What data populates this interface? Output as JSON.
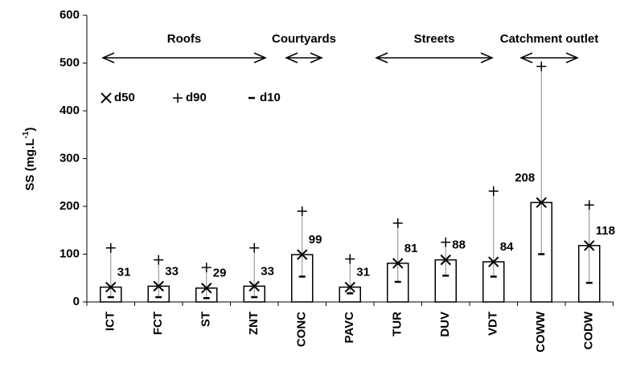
{
  "chart_data": {
    "type": "bar",
    "y_label": {
      "text": "SS (mg.L",
      "sup": "-1",
      "end": ")"
    },
    "categories": [
      "ICT",
      "FCT",
      "ST",
      "ZNT",
      "CONC",
      "PAVC",
      "TUR",
      "DUV",
      "VDT",
      "COWW",
      "CODW"
    ],
    "series": [
      {
        "name": "d50",
        "values": [
          31,
          33,
          29,
          33,
          99,
          31,
          81,
          88,
          84,
          208,
          118
        ]
      },
      {
        "name": "d90",
        "values": [
          113,
          88,
          72,
          113,
          190,
          90,
          165,
          125,
          232,
          493,
          203
        ]
      },
      {
        "name": "d10",
        "values": [
          10,
          10,
          8,
          10,
          53,
          18,
          42,
          55,
          53,
          100,
          40
        ]
      }
    ],
    "groups": [
      "Roofs",
      "Courtyards",
      "Streets",
      "Catchment outlet"
    ],
    "ylim": [
      0,
      600
    ],
    "yticks": [
      0,
      100,
      200,
      300,
      400,
      500,
      600
    ],
    "grid": false
  }
}
